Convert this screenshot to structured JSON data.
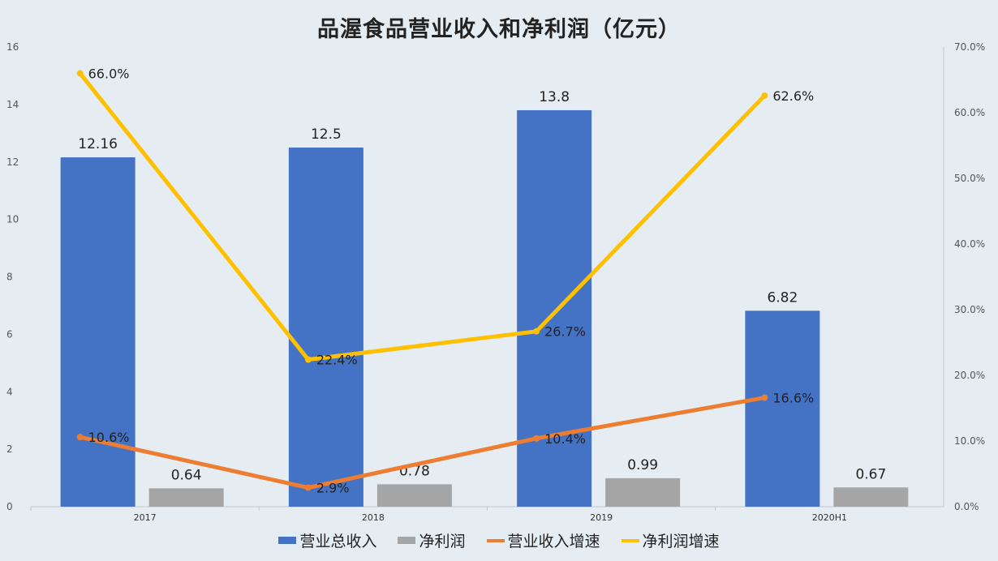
{
  "chart_data": {
    "type": "bar",
    "title": "品渥食品营业收入和净利润（亿元）",
    "categories": [
      "2017",
      "2018",
      "2019",
      "2020H1"
    ],
    "bar_series": [
      {
        "name": "营业总收入",
        "values": [
          12.16,
          12.5,
          13.8,
          6.82
        ],
        "labels": [
          "12.16",
          "12.5",
          "13.8",
          "6.82"
        ],
        "color": "#4472c4"
      },
      {
        "name": "净利润",
        "values": [
          0.64,
          0.78,
          0.99,
          0.67
        ],
        "labels": [
          "0.64",
          "0.78",
          "0.99",
          "0.67"
        ],
        "color": "#a5a5a5"
      }
    ],
    "line_series": [
      {
        "name": "营业收入增速",
        "axis": "right",
        "values": [
          10.6,
          2.9,
          10.4,
          16.6
        ],
        "labels": [
          "10.6%",
          "2.9%",
          "10.4%",
          "16.6%"
        ],
        "color": "#ed7d31"
      },
      {
        "name": "净利润增速",
        "axis": "right",
        "values": [
          66.0,
          22.4,
          26.7,
          62.6
        ],
        "labels": [
          "66.0%",
          "22.4%",
          "26.7%",
          "62.6%"
        ],
        "color": "#ffc000"
      }
    ],
    "y_left": {
      "min": 0,
      "max": 16,
      "ticks": [
        "0",
        "2",
        "4",
        "6",
        "8",
        "10",
        "12",
        "14",
        "16"
      ]
    },
    "y_right": {
      "min": 0,
      "max": 70,
      "ticks": [
        "0.0%",
        "10.0%",
        "20.0%",
        "30.0%",
        "40.0%",
        "50.0%",
        "60.0%",
        "70.0%"
      ]
    },
    "legend_position": "bottom",
    "grid": false
  }
}
